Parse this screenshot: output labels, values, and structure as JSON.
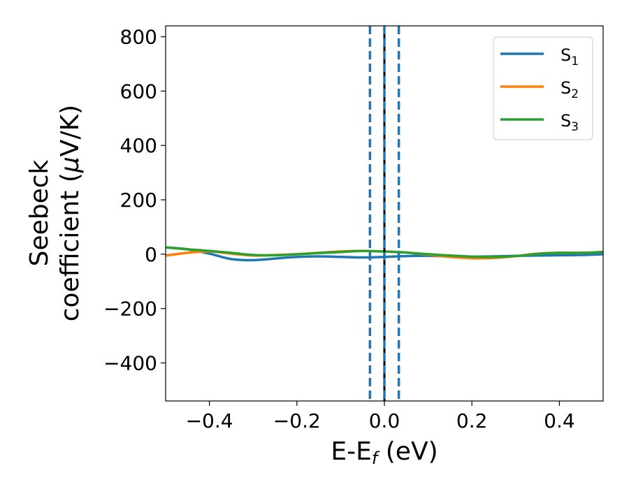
{
  "chart_data": {
    "type": "line",
    "xlabel": "E-E",
    "xlabel_sub": "f",
    "xlabel_unit": " (eV)",
    "ylabel_line1": "Seebeck",
    "ylabel_line2_main": "coefficient  (",
    "ylabel_line2_mu": "μ",
    "ylabel_line2_tail": "V/K)",
    "xlim": [
      -0.5,
      0.5
    ],
    "ylim": [
      -540,
      840
    ],
    "xticks": [
      -0.4,
      -0.2,
      0.0,
      0.2,
      0.4
    ],
    "xtick_labels": [
      "−0.4",
      "−0.2",
      "0.0",
      "0.2",
      "0.4"
    ],
    "yticks": [
      -400,
      -200,
      0,
      200,
      400,
      600,
      800
    ],
    "ytick_labels": [
      "−400",
      "−200",
      "0",
      "200",
      "400",
      "600",
      "800"
    ],
    "grid": false,
    "legend_position": "top-right",
    "vlines": [
      {
        "x": -0.033,
        "style": "dashed",
        "color": "#1f77b4"
      },
      {
        "x": 0.033,
        "style": "dashed",
        "color": "#1f77b4"
      },
      {
        "x": 0.0,
        "style": "solid",
        "color": "#000000"
      },
      {
        "x": 0.0,
        "style": "dashed",
        "color": "#1f77b4"
      }
    ],
    "series": [
      {
        "name": "S",
        "sub": "1",
        "color": "#1f77b4",
        "x": [
          -0.5,
          -0.45,
          -0.4,
          -0.35,
          -0.3,
          -0.25,
          -0.2,
          -0.15,
          -0.1,
          -0.05,
          0.0,
          0.05,
          0.1,
          0.15,
          0.2,
          0.25,
          0.3,
          0.35,
          0.4,
          0.45,
          0.5
        ],
        "y": [
          25,
          18,
          2,
          -18,
          -22,
          -16,
          -10,
          -8,
          -10,
          -12,
          -10,
          -7,
          -6,
          -8,
          -9,
          -8,
          -6,
          -5,
          -4,
          -3,
          0
        ]
      },
      {
        "name": "S",
        "sub": "2",
        "color": "#ff7f0e",
        "x": [
          -0.5,
          -0.45,
          -0.4,
          -0.35,
          -0.3,
          -0.25,
          -0.2,
          -0.15,
          -0.1,
          -0.05,
          0.0,
          0.05,
          0.1,
          0.15,
          0.2,
          0.25,
          0.3,
          0.35,
          0.4,
          0.45,
          0.5
        ],
        "y": [
          -5,
          5,
          10,
          2,
          -5,
          -3,
          0,
          5,
          10,
          12,
          10,
          6,
          -2,
          -10,
          -15,
          -14,
          -7,
          2,
          5,
          5,
          8
        ]
      },
      {
        "name": "S",
        "sub": "3",
        "color": "#2ca02c",
        "x": [
          -0.5,
          -0.45,
          -0.4,
          -0.35,
          -0.3,
          -0.25,
          -0.2,
          -0.15,
          -0.1,
          -0.05,
          0.0,
          0.05,
          0.1,
          0.15,
          0.2,
          0.25,
          0.3,
          0.35,
          0.4,
          0.45,
          0.5
        ],
        "y": [
          25,
          18,
          12,
          5,
          -3,
          -4,
          0,
          4,
          8,
          12,
          10,
          6,
          0,
          -5,
          -9,
          -10,
          -7,
          1,
          5,
          5,
          8
        ]
      }
    ]
  }
}
